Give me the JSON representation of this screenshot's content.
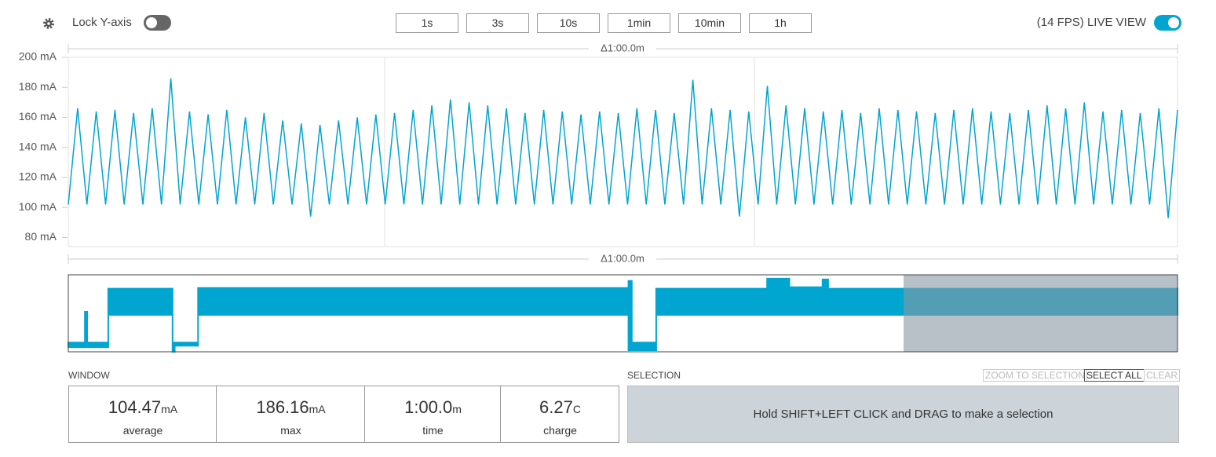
{
  "toolbar": {
    "lock_label": "Lock Y-axis",
    "lock_on": false,
    "time_buttons": [
      "1s",
      "3s",
      "10s",
      "1min",
      "10min",
      "1h"
    ],
    "live_label": "(14 FPS) LIVE VIEW",
    "live_on": true
  },
  "chart_data": {
    "type": "line",
    "window_label": "Δ1:00.0m",
    "color": "#00a5d0",
    "ylim": [
      74,
      200
    ],
    "yticks": [
      {
        "value": 200,
        "label": "200 mA"
      },
      {
        "value": 180,
        "label": "180 mA"
      },
      {
        "value": 160,
        "label": "160 mA"
      },
      {
        "value": 140,
        "label": "140 mA"
      },
      {
        "value": 120,
        "label": "120 mA"
      },
      {
        "value": 100,
        "label": "100 mA"
      },
      {
        "value": 80,
        "label": "80 mA"
      }
    ],
    "values": [
      102,
      166,
      102,
      164,
      102,
      165,
      102,
      163,
      102,
      166,
      102,
      186,
      102,
      164,
      102,
      162,
      102,
      165,
      102,
      160,
      102,
      163,
      102,
      158,
      102,
      156,
      94,
      155,
      102,
      158,
      102,
      160,
      102,
      162,
      102,
      163,
      102,
      165,
      102,
      168,
      102,
      172,
      102,
      170,
      102,
      168,
      102,
      166,
      102,
      163,
      102,
      165,
      102,
      164,
      102,
      162,
      102,
      164,
      102,
      163,
      102,
      166,
      102,
      165,
      102,
      163,
      102,
      185,
      102,
      166,
      102,
      165,
      94,
      164,
      102,
      181,
      102,
      168,
      102,
      166,
      102,
      164,
      102,
      165,
      102,
      163,
      102,
      166,
      102,
      165,
      102,
      164,
      102,
      163,
      102,
      165,
      102,
      166,
      102,
      164,
      102,
      163,
      102,
      165,
      102,
      168,
      102,
      166,
      102,
      170,
      102,
      164,
      102,
      165,
      102,
      163,
      102,
      166,
      93,
      165
    ]
  },
  "overview": {
    "label": "Δ1:00.0m",
    "xlim": [
      0,
      100
    ],
    "ylim": [
      0,
      100
    ],
    "series": [
      {
        "name": "upper",
        "x": [
          0,
          1.5,
          1.5,
          1.7,
          1.7,
          3.6,
          3.6,
          9.4,
          9.4,
          11.7,
          11.7,
          50.5,
          50.5,
          50.8,
          50.8,
          53,
          53,
          63,
          63,
          65,
          65,
          68,
          68,
          68.5,
          68.5,
          100
        ],
        "values": [
          12,
          12,
          52,
          52,
          12,
          12,
          82,
          82,
          12,
          12,
          83,
          83,
          92,
          92,
          12,
          12,
          82,
          82,
          95,
          95,
          84,
          84,
          94,
          94,
          82,
          82
        ]
      },
      {
        "name": "lower",
        "x": [
          0,
          3.6,
          3.6,
          9.4,
          9.4,
          9.6,
          9.6,
          11.7,
          11.7,
          50.5,
          50.5,
          53,
          53,
          100
        ],
        "values": [
          6,
          6,
          48,
          48,
          0,
          0,
          8,
          8,
          48,
          48,
          2,
          2,
          48,
          48
        ]
      }
    ]
  },
  "stats": {
    "title": "WINDOW",
    "items": [
      {
        "value": "104.47",
        "unit": "mA",
        "label": "average"
      },
      {
        "value": "186.16",
        "unit": "mA",
        "label": "max"
      },
      {
        "value": "1:00.0",
        "unit": "m",
        "label": "time"
      },
      {
        "value": "6.27",
        "unit": "C",
        "label": "charge"
      }
    ]
  },
  "selection": {
    "title": "SELECTION",
    "buttons": [
      "ZOOM TO SELECTION",
      "SELECT ALL",
      "CLEAR"
    ],
    "hint": "Hold SHIFT+LEFT CLICK and DRAG to make a selection"
  }
}
